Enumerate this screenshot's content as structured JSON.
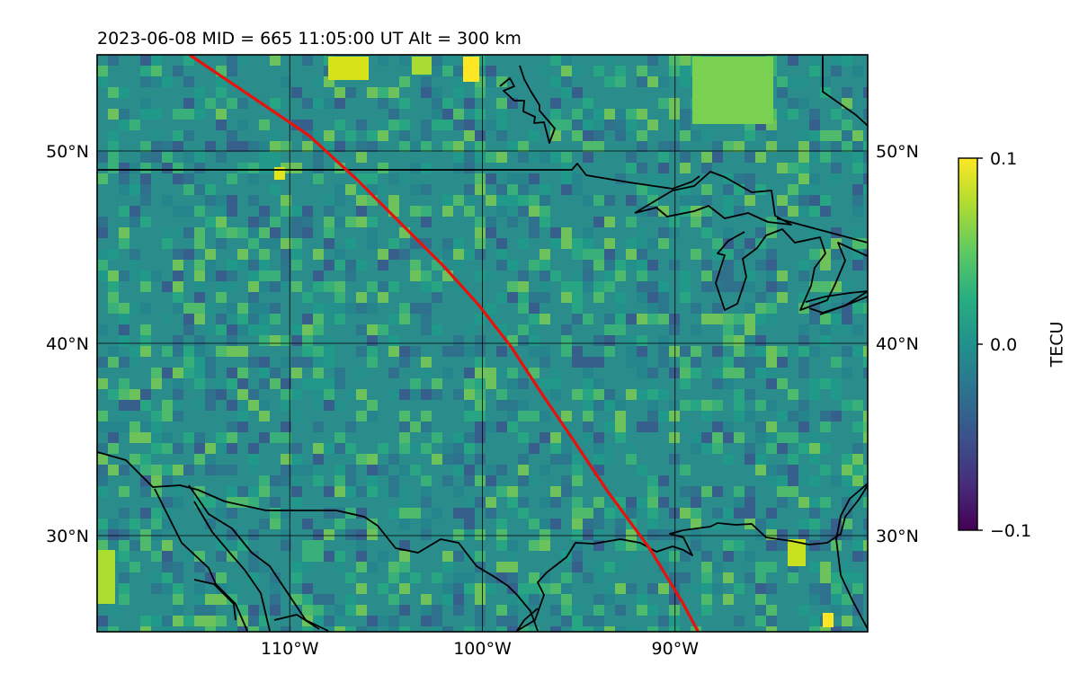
{
  "chart_data": {
    "type": "heatmap",
    "title": "2023-06-08  MID = 665    11:05:00  UT  Alt = 300 km",
    "xlim": [
      -120,
      -80
    ],
    "ylim": [
      25,
      55
    ],
    "x_ticks": [
      {
        "value": -110,
        "label": "110°W"
      },
      {
        "value": -100,
        "label": "100°W"
      },
      {
        "value": -90,
        "label": "90°W"
      }
    ],
    "y_ticks": [
      {
        "value": 50,
        "label": "50°N"
      },
      {
        "value": 40,
        "label": "40°N"
      },
      {
        "value": 30,
        "label": "30°N"
      }
    ],
    "grid": true,
    "colorbar": {
      "label": "TECU",
      "colormap": "viridis",
      "min": -0.1,
      "max": 0.1,
      "ticks": [
        {
          "value": 0.1,
          "label": "0.1"
        },
        {
          "value": 0.0,
          "label": "0.0"
        },
        {
          "value": -0.1,
          "label": "−0.1"
        }
      ]
    },
    "overlay_track": {
      "color": "#e8120c",
      "points": [
        [
          -115.2,
          55
        ],
        [
          -111.5,
          52.5
        ],
        [
          -109,
          50.8
        ],
        [
          -106.5,
          48.5
        ],
        [
          -104,
          46
        ],
        [
          -102,
          44
        ],
        [
          -100.2,
          42
        ],
        [
          -98.5,
          39.8
        ],
        [
          -97,
          37.5
        ],
        [
          -95.3,
          35
        ],
        [
          -93.5,
          32.3
        ],
        [
          -91.3,
          29.3
        ],
        [
          -89.6,
          26.5
        ],
        [
          -88.8,
          25
        ]
      ]
    },
    "colors": {
      "background": "#2b8c8c",
      "track": "#e8120c",
      "coastline": "#000000"
    }
  }
}
